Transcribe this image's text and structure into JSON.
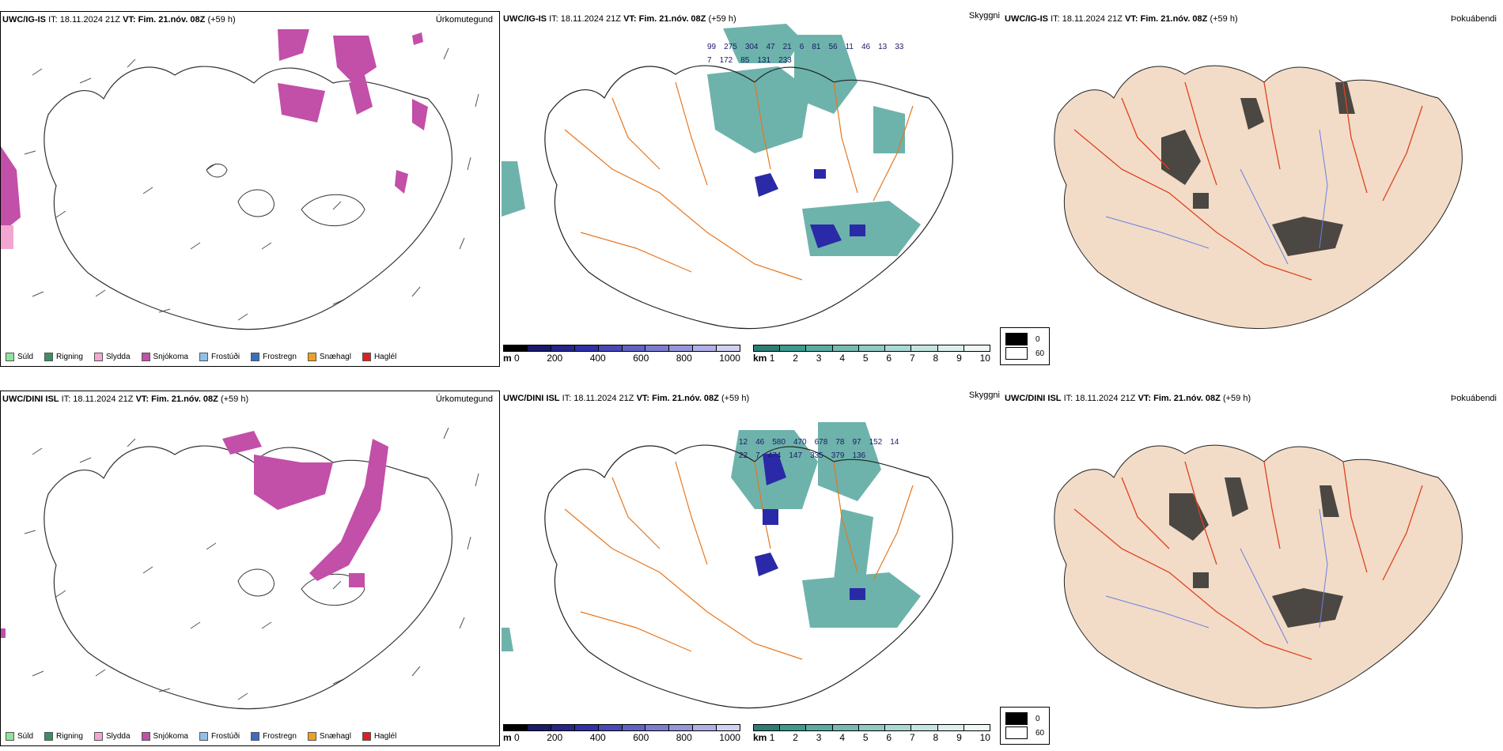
{
  "rows": [
    {
      "model": "UWC/IG-IS",
      "it_label": "IT:",
      "it_value": "18.11.2024 21Z",
      "vt_label": "VT:",
      "vt_value": "Fim. 21.nóv. 08Z",
      "lead": "(+59 h)",
      "cloud_numbers": [
        "99",
        "275",
        "304",
        "47",
        "21",
        "6",
        "81",
        "56",
        "11",
        "46",
        "13",
        "33",
        "7",
        "172",
        "85",
        "131",
        "233"
      ]
    },
    {
      "model": "UWC/DINI ISL",
      "it_label": "IT:",
      "it_value": "18.11.2024 21Z",
      "vt_label": "VT:",
      "vt_value": "Fim. 21.nóv. 08Z",
      "lead": "(+59 h)",
      "cloud_numbers": [
        "12",
        "46",
        "580",
        "470",
        "678",
        "78",
        "97",
        "152",
        "14",
        "22",
        "7",
        "474",
        "147",
        "335",
        "379",
        "136"
      ]
    }
  ],
  "panel_titles": {
    "precip_type": "Úrkomutegund",
    "cloud": "Skyggni",
    "fog": "Þokuábendi"
  },
  "precip_legend": [
    {
      "label": "Súld",
      "color": "#8fe39a"
    },
    {
      "label": "Rigning",
      "color": "#3a8f63"
    },
    {
      "label": "Slydda",
      "color": "#f2a6d2"
    },
    {
      "label": "Snjókoma",
      "color": "#c24fa8"
    },
    {
      "label": "Frostúði",
      "color": "#8fc0ea"
    },
    {
      "label": "Frostregn",
      "color": "#3a6fc0"
    },
    {
      "label": "Snæhagl",
      "color": "#f0a020"
    },
    {
      "label": "Haglél",
      "color": "#e02020"
    }
  ],
  "ceiling_scale": {
    "unit": "m",
    "ticks": [
      "0",
      "200",
      "400",
      "600",
      "800",
      "1000"
    ]
  },
  "visibility_scale": {
    "unit": "km",
    "ticks": [
      "1",
      "2",
      "3",
      "4",
      "5",
      "6",
      "7",
      "8",
      "9",
      "10"
    ]
  },
  "fog_legend": [
    {
      "label": "0",
      "color": "#000000"
    },
    {
      "label": "60",
      "color": "#ffffff"
    }
  ],
  "colors": {
    "snow": "#c24fa8",
    "cloud_teal": "#3d9a8f",
    "ceiling_blue": "#2a2aa8",
    "road_orange": "#e8761e",
    "fog_land": "#f2dcc8",
    "fog_road": "#e0401a",
    "river_blue": "#6b7fe0"
  }
}
